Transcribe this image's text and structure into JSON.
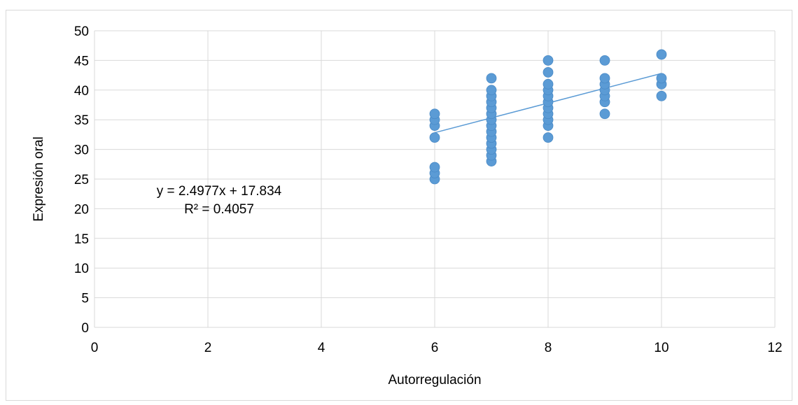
{
  "chart_data": {
    "type": "scatter",
    "title": "",
    "xlabel": "Autorregulación",
    "ylabel": "Expresión oral",
    "xlim": [
      0,
      12
    ],
    "ylim": [
      0,
      50
    ],
    "x_ticks": [
      0,
      2,
      4,
      6,
      8,
      10,
      12
    ],
    "y_ticks": [
      0,
      5,
      10,
      15,
      20,
      25,
      30,
      35,
      40,
      45,
      50
    ],
    "grid": true,
    "legend": "none",
    "series": [
      {
        "color": "#5b9bd5",
        "points": [
          {
            "x": 6,
            "y": 25
          },
          {
            "x": 6,
            "y": 26
          },
          {
            "x": 6,
            "y": 27
          },
          {
            "x": 6,
            "y": 32
          },
          {
            "x": 6,
            "y": 34
          },
          {
            "x": 6,
            "y": 35
          },
          {
            "x": 6,
            "y": 36
          },
          {
            "x": 7,
            "y": 28
          },
          {
            "x": 7,
            "y": 29
          },
          {
            "x": 7,
            "y": 30
          },
          {
            "x": 7,
            "y": 31
          },
          {
            "x": 7,
            "y": 32
          },
          {
            "x": 7,
            "y": 33
          },
          {
            "x": 7,
            "y": 34
          },
          {
            "x": 7,
            "y": 35
          },
          {
            "x": 7,
            "y": 36
          },
          {
            "x": 7,
            "y": 37
          },
          {
            "x": 7,
            "y": 38
          },
          {
            "x": 7,
            "y": 39
          },
          {
            "x": 7,
            "y": 40
          },
          {
            "x": 7,
            "y": 42
          },
          {
            "x": 8,
            "y": 32
          },
          {
            "x": 8,
            "y": 34
          },
          {
            "x": 8,
            "y": 35
          },
          {
            "x": 8,
            "y": 36
          },
          {
            "x": 8,
            "y": 37
          },
          {
            "x": 8,
            "y": 38
          },
          {
            "x": 8,
            "y": 39
          },
          {
            "x": 8,
            "y": 40
          },
          {
            "x": 8,
            "y": 41
          },
          {
            "x": 8,
            "y": 43
          },
          {
            "x": 8,
            "y": 45
          },
          {
            "x": 9,
            "y": 36
          },
          {
            "x": 9,
            "y": 38
          },
          {
            "x": 9,
            "y": 39
          },
          {
            "x": 9,
            "y": 40
          },
          {
            "x": 9,
            "y": 41
          },
          {
            "x": 9,
            "y": 42
          },
          {
            "x": 9,
            "y": 45
          },
          {
            "x": 10,
            "y": 39
          },
          {
            "x": 10,
            "y": 41
          },
          {
            "x": 10,
            "y": 42
          },
          {
            "x": 10,
            "y": 46
          }
        ]
      }
    ],
    "trendline": {
      "type": "linear",
      "slope": 2.4977,
      "intercept": 17.834,
      "x_range": [
        6,
        10
      ],
      "color": "#5b9bd5",
      "equation_label": "y = 2.4977x + 17.834",
      "r2_label": "R² = 0.4057"
    }
  }
}
